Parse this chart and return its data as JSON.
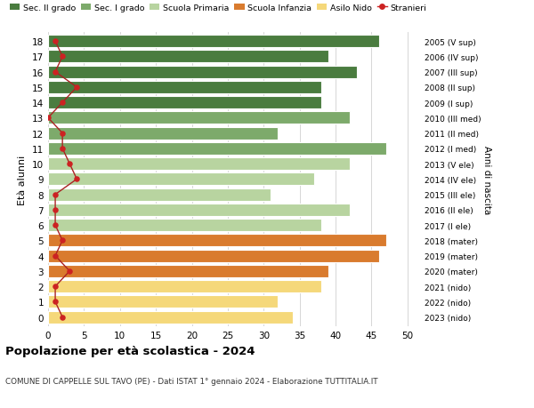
{
  "ages": [
    18,
    17,
    16,
    15,
    14,
    13,
    12,
    11,
    10,
    9,
    8,
    7,
    6,
    5,
    4,
    3,
    2,
    1,
    0
  ],
  "bar_values": [
    46,
    39,
    43,
    38,
    38,
    42,
    32,
    47,
    42,
    37,
    31,
    42,
    38,
    47,
    46,
    39,
    38,
    32,
    34
  ],
  "bar_colors": [
    "#4a7c3f",
    "#4a7c3f",
    "#4a7c3f",
    "#4a7c3f",
    "#4a7c3f",
    "#7daa6b",
    "#7daa6b",
    "#7daa6b",
    "#b8d4a0",
    "#b8d4a0",
    "#b8d4a0",
    "#b8d4a0",
    "#b8d4a0",
    "#d97b2e",
    "#d97b2e",
    "#d97b2e",
    "#f5d87a",
    "#f5d87a",
    "#f5d87a"
  ],
  "stranieri_values": [
    1,
    2,
    1,
    4,
    2,
    0,
    2,
    2,
    3,
    4,
    1,
    1,
    1,
    2,
    1,
    3,
    1,
    1,
    2
  ],
  "right_labels": [
    "2005 (V sup)",
    "2006 (IV sup)",
    "2007 (III sup)",
    "2008 (II sup)",
    "2009 (I sup)",
    "2010 (III med)",
    "2011 (II med)",
    "2012 (I med)",
    "2013 (V ele)",
    "2014 (IV ele)",
    "2015 (III ele)",
    "2016 (II ele)",
    "2017 (I ele)",
    "2018 (mater)",
    "2019 (mater)",
    "2020 (mater)",
    "2021 (nido)",
    "2022 (nido)",
    "2023 (nido)"
  ],
  "legend_labels": [
    "Sec. II grado",
    "Sec. I grado",
    "Scuola Primaria",
    "Scuola Infanzia",
    "Asilo Nido",
    "Stranieri"
  ],
  "legend_colors": [
    "#4a7c3f",
    "#7daa6b",
    "#b8d4a0",
    "#d97b2e",
    "#f5d87a",
    "#cc2222"
  ],
  "ylabel": "Età alunni",
  "right_ylabel": "Anni di nascita",
  "title": "Popolazione per età scolastica - 2024",
  "subtitle": "COMUNE DI CAPPELLE SUL TAVO (PE) - Dati ISTAT 1° gennaio 2024 - Elaborazione TUTTITALIA.IT",
  "xlim": [
    0,
    52
  ],
  "xticks": [
    0,
    5,
    10,
    15,
    20,
    25,
    30,
    35,
    40,
    45,
    50
  ],
  "background_color": "#ffffff",
  "grid_color": "#d0d0d0",
  "stranieri_color": "#cc2222",
  "stranieri_line_color": "#aa2222"
}
